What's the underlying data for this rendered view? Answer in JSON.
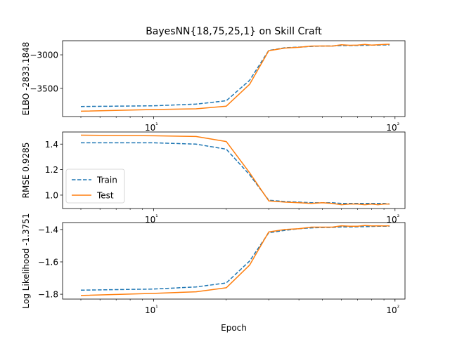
{
  "chart_data": [
    {
      "type": "line",
      "title": "BayesNN{18,75,25,1} on Skill Craft",
      "ylabel": "ELBO -2833.1848",
      "xlabel": "",
      "xscale": "log",
      "xlim": [
        4.2,
        110
      ],
      "ylim": [
        -3920,
        -2790
      ],
      "xticks": [
        10,
        100
      ],
      "xtick_labels": [
        "10¹",
        "10²"
      ],
      "yticks": [
        -3500,
        -3000
      ],
      "ytick_labels": [
        "−3500",
        "−3000"
      ],
      "x": [
        5,
        10,
        15,
        20,
        25,
        30,
        35,
        40,
        45,
        50,
        55,
        60,
        65,
        70,
        75,
        80,
        85,
        90,
        95
      ],
      "series": [
        {
          "name": "Train",
          "style": "dashed",
          "color": "#1f77b4",
          "values": [
            -3770,
            -3760,
            -3735,
            -3685,
            -3380,
            -2935,
            -2895,
            -2885,
            -2875,
            -2870,
            -2868,
            -2862,
            -2862,
            -2860,
            -2858,
            -2856,
            -2855,
            -2853,
            -2852
          ]
        },
        {
          "name": "Test",
          "style": "solid",
          "color": "#ff7f0e",
          "values": [
            -3840,
            -3815,
            -3805,
            -3765,
            -3440,
            -2940,
            -2900,
            -2888,
            -2870,
            -2868,
            -2870,
            -2850,
            -2858,
            -2855,
            -2845,
            -2855,
            -2850,
            -2845,
            -2842
          ]
        }
      ]
    },
    {
      "type": "line",
      "ylabel": "RMSE 0.9285",
      "xlabel": "",
      "xscale": "log",
      "xlim": [
        4.2,
        110
      ],
      "ylim": [
        0.895,
        1.495
      ],
      "xticks": [
        10,
        100
      ],
      "xtick_labels": [
        "10¹",
        "10²"
      ],
      "yticks": [
        1.0,
        1.2,
        1.4
      ],
      "ytick_labels": [
        "1.0",
        "1.2",
        "1.4"
      ],
      "legend": {
        "location": "lower-left",
        "entries": [
          "Train",
          "Test"
        ]
      },
      "x": [
        5,
        10,
        15,
        20,
        25,
        30,
        35,
        40,
        45,
        50,
        55,
        60,
        65,
        70,
        75,
        80,
        85,
        90,
        95
      ],
      "series": [
        {
          "name": "Train",
          "style": "dashed",
          "color": "#1f77b4",
          "values": [
            1.41,
            1.41,
            1.4,
            1.36,
            1.16,
            0.96,
            0.95,
            0.945,
            0.94,
            0.94,
            0.94,
            0.935,
            0.935,
            0.935,
            0.935,
            0.935,
            0.935,
            0.935,
            0.93
          ]
        },
        {
          "name": "Test",
          "style": "solid",
          "color": "#ff7f0e",
          "values": [
            1.47,
            1.465,
            1.46,
            1.42,
            1.175,
            0.955,
            0.945,
            0.94,
            0.935,
            0.94,
            0.935,
            0.925,
            0.93,
            0.93,
            0.925,
            0.93,
            0.925,
            0.93,
            0.93
          ]
        }
      ]
    },
    {
      "type": "line",
      "ylabel": "Log Likelihood -1.3751",
      "xlabel": "Epoch",
      "xscale": "log",
      "xlim": [
        4.2,
        110
      ],
      "ylim": [
        -1.83,
        -1.357
      ],
      "xticks": [
        10,
        100
      ],
      "xtick_labels": [
        "10¹",
        "10²"
      ],
      "yticks": [
        -1.8,
        -1.6,
        -1.4
      ],
      "ytick_labels": [
        "−1.8",
        "−1.6",
        "−1.4"
      ],
      "x": [
        5,
        10,
        15,
        20,
        25,
        30,
        35,
        40,
        45,
        50,
        55,
        60,
        65,
        70,
        75,
        80,
        85,
        90,
        95
      ],
      "series": [
        {
          "name": "Train",
          "style": "dashed",
          "color": "#1f77b4",
          "values": [
            -1.775,
            -1.768,
            -1.755,
            -1.73,
            -1.595,
            -1.42,
            -1.405,
            -1.395,
            -1.39,
            -1.388,
            -1.387,
            -1.384,
            -1.384,
            -1.383,
            -1.382,
            -1.381,
            -1.38,
            -1.38,
            -1.379
          ]
        },
        {
          "name": "Test",
          "style": "solid",
          "color": "#ff7f0e",
          "values": [
            -1.808,
            -1.795,
            -1.785,
            -1.76,
            -1.62,
            -1.415,
            -1.4,
            -1.395,
            -1.385,
            -1.385,
            -1.385,
            -1.377,
            -1.38,
            -1.38,
            -1.375,
            -1.378,
            -1.377,
            -1.378,
            -1.377
          ]
        }
      ]
    }
  ]
}
